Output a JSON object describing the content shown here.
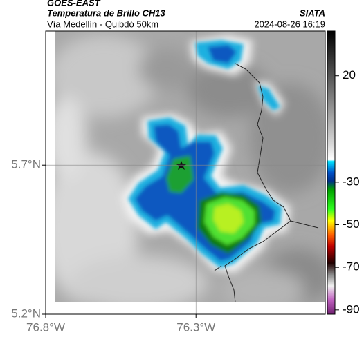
{
  "header": {
    "title": "GOES-EAST",
    "subtitle": "Temperatura de Brillo CH13",
    "route": "Vía Medellín - Quibdó 50km",
    "source": "SIATA",
    "datetime": "2024-08-26 16:19"
  },
  "map": {
    "xlim": [
      -76.8,
      -75.87
    ],
    "ylim": [
      5.2,
      6.15
    ],
    "xticks": [
      {
        "value": -76.8,
        "label": "76.8°W"
      },
      {
        "value": -76.3,
        "label": "76.3°W"
      }
    ],
    "yticks": [
      {
        "value": 5.7,
        "label": "5.7°N"
      },
      {
        "value": 5.2,
        "label": "5.2°N"
      }
    ]
  },
  "colorbar": {
    "lim": [
      -92,
      41
    ],
    "ticks": [
      20,
      -30,
      -50,
      -70,
      -90
    ]
  }
}
